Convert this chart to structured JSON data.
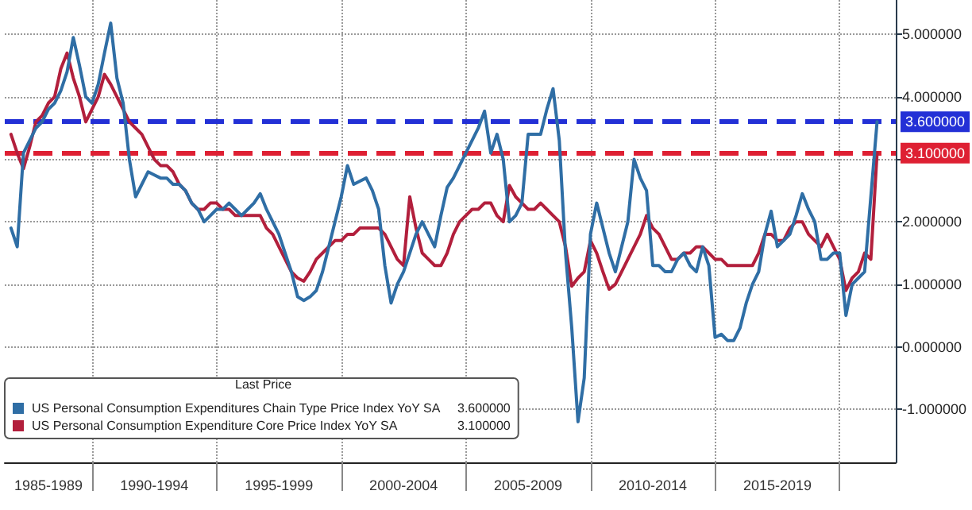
{
  "chart_data": {
    "type": "line",
    "legend_title": "Last Price",
    "legend": "bottom left",
    "grid": true,
    "marker": "none",
    "line_style": "solid",
    "annotations": [
      "3.600000",
      "3.100000"
    ],
    "categories": [
      null,
      null,
      null,
      null,
      null,
      null,
      null,
      "1985-1989",
      null,
      null,
      null,
      null,
      null,
      null,
      null,
      null,
      null,
      null,
      null,
      null,
      null,
      null,
      null,
      null,
      "1990-1994",
      null,
      null,
      null,
      null,
      null,
      null,
      null,
      null,
      null,
      null,
      null,
      null,
      null,
      null,
      null,
      null,
      null,
      null,
      null,
      "1995-1999",
      null,
      null,
      null,
      null,
      null,
      null,
      null,
      null,
      null,
      null,
      null,
      null,
      null,
      null,
      null,
      null,
      null,
      null,
      null,
      "2000-2004",
      null,
      null,
      null,
      null,
      null,
      null,
      null,
      null,
      null,
      null,
      null,
      null,
      null,
      null,
      null,
      null,
      null,
      null,
      null,
      "2005-2009",
      null,
      null,
      null,
      null,
      null,
      null,
      null,
      null,
      null,
      null,
      null,
      null,
      null,
      null,
      null,
      null,
      null,
      null,
      null,
      "2010-2014",
      null,
      null,
      null,
      null,
      null,
      null,
      null,
      null,
      null,
      null,
      null,
      null,
      null,
      null,
      null,
      null,
      null,
      null,
      null,
      "2015-2019",
      null,
      null,
      null,
      null,
      null,
      null,
      null,
      null,
      null,
      null,
      null,
      null,
      null,
      null,
      null,
      null,
      null,
      null,
      null
    ],
    "ylim": [
      -1.85,
      5.55
    ],
    "yticks": [
      {
        "value": -1,
        "label": "-1.000000"
      },
      {
        "value": 0,
        "label": "0.000000"
      },
      {
        "value": 1,
        "label": "1.000000"
      },
      {
        "value": 2,
        "label": "2.000000"
      },
      {
        "value": 3,
        "label": null
      },
      {
        "value": 4,
        "label": "4.000000"
      },
      {
        "value": 5,
        "label": "5.000000"
      }
    ],
    "ref_lines": [
      {
        "axis": "y",
        "value": 3.6,
        "label": "3.600000",
        "color": "#2330d6",
        "line_style": "dashed"
      },
      {
        "axis": "y",
        "value": 3.1,
        "label": "3.100000",
        "color": "#de2033",
        "line_style": "dashed"
      }
    ],
    "series": [
      {
        "name": "US Personal Consumption Expenditures Chain Type Price Index YoY SA",
        "color": "#2f6ea5",
        "values": [
          null,
          1.9,
          1.6,
          3.1,
          3.3,
          3.5,
          3.6,
          3.8,
          3.9,
          4.1,
          4.4,
          4.95,
          4.5,
          4.0,
          3.9,
          4.2,
          4.7,
          5.18,
          4.3,
          3.9,
          3.0,
          2.4,
          2.6,
          2.8,
          2.75,
          2.7,
          2.7,
          2.6,
          2.6,
          2.5,
          2.3,
          2.2,
          2.0,
          2.1,
          2.2,
          2.2,
          2.3,
          2.2,
          2.1,
          2.2,
          2.3,
          2.45,
          2.2,
          2.0,
          1.8,
          1.5,
          1.2,
          0.8,
          0.74,
          0.8,
          0.9,
          1.2,
          1.6,
          2.0,
          2.4,
          2.9,
          2.6,
          2.65,
          2.7,
          2.5,
          2.2,
          1.3,
          0.7,
          1.0,
          1.2,
          1.5,
          1.8,
          2.0,
          1.8,
          1.6,
          2.1,
          2.55,
          2.7,
          2.9,
          3.1,
          3.3,
          3.5,
          3.77,
          3.1,
          3.4,
          3.0,
          2.0,
          2.1,
          2.3,
          3.4,
          3.4,
          3.4,
          3.8,
          4.13,
          3.3,
          1.5,
          0.3,
          -1.2,
          -0.5,
          1.8,
          2.3,
          1.9,
          1.5,
          1.2,
          1.6,
          2.0,
          3.0,
          2.7,
          2.5,
          1.3,
          1.3,
          1.2,
          1.2,
          1.4,
          1.5,
          1.3,
          1.2,
          1.6,
          1.3,
          0.15,
          0.2,
          0.1,
          0.1,
          0.3,
          0.7,
          1.0,
          1.2,
          1.8,
          2.17,
          1.6,
          1.7,
          1.8,
          2.1,
          2.45,
          2.2,
          2.0,
          1.4,
          1.4,
          1.5,
          1.5,
          0.5,
          1.0,
          1.1,
          1.2,
          2.4,
          3.6,
          null,
          null,
          null
        ]
      },
      {
        "name": "US Personal Consumption Expenditure Core Price Index YoY SA",
        "color": "#b21f3c",
        "values": [
          null,
          3.4,
          3.1,
          2.85,
          3.2,
          3.6,
          3.7,
          3.9,
          4.0,
          4.45,
          4.7,
          4.3,
          4.0,
          3.6,
          3.8,
          4.0,
          4.36,
          4.2,
          4.0,
          3.8,
          3.6,
          3.5,
          3.4,
          3.2,
          3.0,
          2.9,
          2.9,
          2.8,
          2.6,
          2.5,
          2.3,
          2.2,
          2.2,
          2.3,
          2.3,
          2.2,
          2.2,
          2.1,
          2.1,
          2.1,
          2.1,
          2.1,
          1.9,
          1.8,
          1.6,
          1.4,
          1.2,
          1.1,
          1.05,
          1.2,
          1.4,
          1.5,
          1.6,
          1.7,
          1.7,
          1.8,
          1.8,
          1.9,
          1.9,
          1.9,
          1.9,
          1.8,
          1.6,
          1.4,
          1.3,
          2.4,
          1.9,
          1.5,
          1.4,
          1.3,
          1.3,
          1.5,
          1.8,
          2.0,
          2.1,
          2.2,
          2.2,
          2.3,
          2.3,
          2.1,
          2.0,
          2.58,
          2.4,
          2.3,
          2.2,
          2.2,
          2.3,
          2.2,
          2.1,
          2.0,
          1.6,
          0.97,
          1.1,
          1.2,
          1.7,
          1.5,
          1.2,
          0.92,
          1.0,
          1.2,
          1.4,
          1.6,
          1.8,
          2.1,
          1.9,
          1.8,
          1.6,
          1.4,
          1.4,
          1.5,
          1.5,
          1.6,
          1.6,
          1.5,
          1.4,
          1.4,
          1.3,
          1.3,
          1.3,
          1.3,
          1.3,
          1.5,
          1.8,
          1.8,
          1.7,
          1.7,
          1.9,
          2.0,
          2.0,
          1.8,
          1.7,
          1.6,
          1.8,
          1.6,
          1.4,
          0.9,
          1.1,
          1.2,
          1.5,
          1.4,
          3.1,
          null,
          null,
          null
        ]
      }
    ]
  }
}
